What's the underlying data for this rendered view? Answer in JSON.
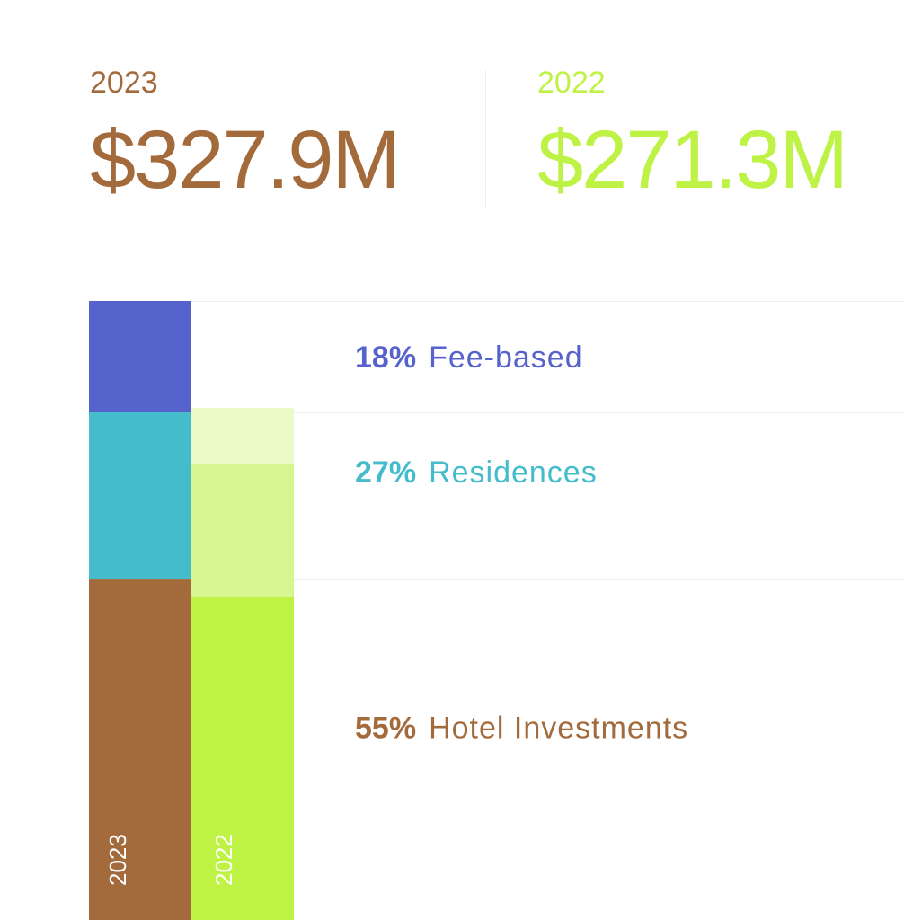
{
  "summary": {
    "current": {
      "year": "2023",
      "amount": "$327.9M",
      "color": "#a36a3b"
    },
    "previous": {
      "year": "2022",
      "amount": "$271.3M",
      "color": "#bef245"
    }
  },
  "chart_data": {
    "type": "bar",
    "stacked": true,
    "normalized": true,
    "categories": [
      "2023",
      "2022"
    ],
    "series": [
      {
        "name": "Hotel Investments",
        "label_pct": "55%",
        "values": [
          55,
          63
        ],
        "color_2023": "#a36a3b",
        "color_2022": "#bef245"
      },
      {
        "name": "Residences",
        "label_pct": "27%",
        "values": [
          27,
          22
        ],
        "color_2023": "#44bccb",
        "color_2022": "#d8f68f"
      },
      {
        "name": "Fee-based",
        "label_pct": "18%",
        "values": [
          18,
          0
        ],
        "color_2023": "#5763cc",
        "color_2022": "#ebfac8"
      }
    ],
    "previous_year_top_segment": 11,
    "label_colors": {
      "Fee-based": "#5763cc",
      "Residences": "#44bccb",
      "Hotel Investments": "#a36a3b"
    }
  }
}
